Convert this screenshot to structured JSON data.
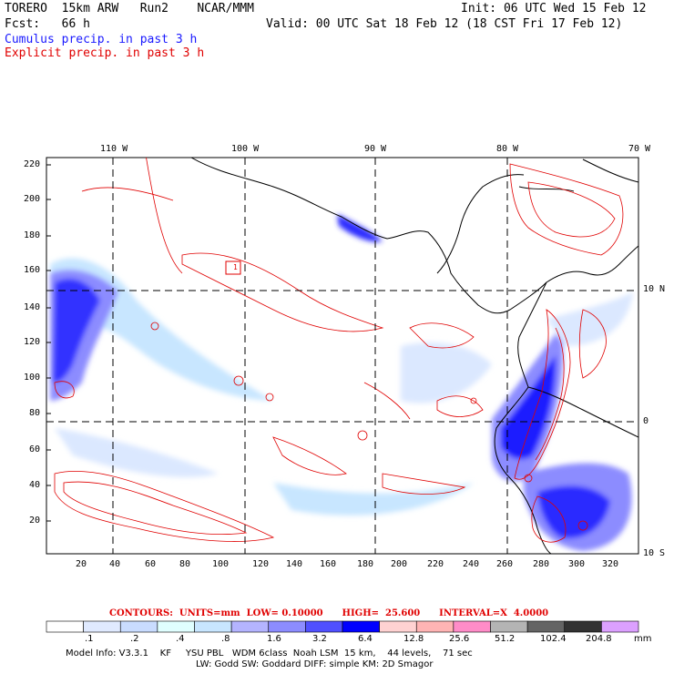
{
  "header": {
    "model": "TORERO  15km ARW   Run2    NCAR/MMM",
    "init": "Init: 06 UTC Wed 15 Feb 12",
    "fcst": "Fcst:   66 h",
    "valid": "Valid: 00 UTC Sat 18 Feb 12 (18 CST Fri 17 Feb 12)",
    "field1": "Cumulus precip. in past 3 h",
    "field2": "Explicit precip. in past 3 h"
  },
  "map": {
    "top_lon_labels": [
      "110 W",
      "100 W",
      "90 W",
      "80 W",
      "70 W"
    ],
    "right_lat_labels": [
      "10 N",
      "0",
      "10 S"
    ],
    "y_ticks": [
      "220",
      "200",
      "180",
      "160",
      "140",
      "120",
      "100",
      "80",
      "60",
      "40",
      "20"
    ],
    "x_ticks": [
      "20",
      "40",
      "60",
      "80",
      "100",
      "120",
      "140",
      "160",
      "180",
      "200",
      "220",
      "240",
      "260",
      "280",
      "300",
      "320"
    ],
    "box_label": "1"
  },
  "legend": {
    "caption": "CONTOURS:  UNITS=mm  LOW= 0.10000      HIGH=  25.600      INTERVAL=X  4.0000",
    "colors": [
      "#ffffff",
      "#e0eaff",
      "#c9dcff",
      "#e0ffff",
      "#c8e6ff",
      "#b4b4ff",
      "#8c8cff",
      "#5050ff",
      "#0000ff",
      "#ffd2d2",
      "#ffb4b4",
      "#ff8cc8",
      "#b4b4b4",
      "#646464",
      "#323232",
      "#dca0ff"
    ],
    "labels": [
      ".1",
      ".2",
      ".4",
      ".8",
      "1.6",
      "3.2",
      "6.4",
      "12.8",
      "25.6",
      "51.2",
      "102.4",
      "204.8"
    ],
    "unit": "mm"
  },
  "info": {
    "line1": "Model Info: V3.3.1    KF     YSU PBL   WDM 6class  Noah LSM  15 km,    44 levels,    71 sec",
    "line2": "LW: Godd SW: Goddard DIFF: simple KM: 2D Smagor"
  }
}
